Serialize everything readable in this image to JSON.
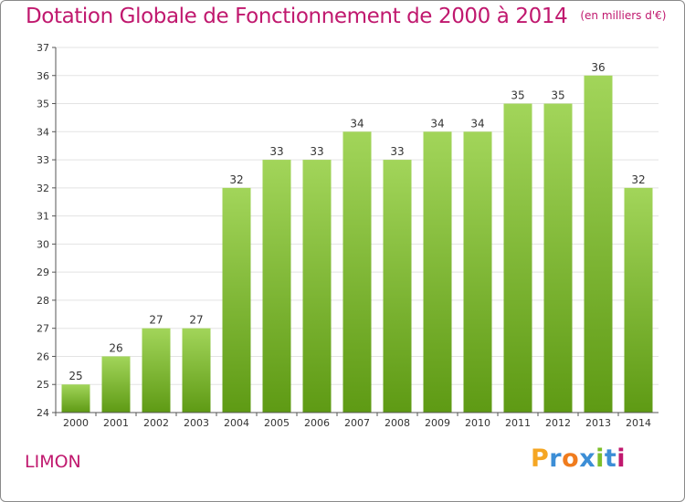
{
  "header": {
    "title": "Dotation Globale de Fonctionnement de 2000 à 2014",
    "subtitle": "(en milliers d'€)"
  },
  "footer": {
    "commune": "LIMON",
    "brand": "Proxiti"
  },
  "colors": {
    "title": "#c0186e",
    "bar_light": "#a2d55a",
    "bar_dark": "#5e9a14",
    "grid": "#e3e3e3",
    "axis": "#555555",
    "brand_letters": [
      "#f5a623",
      "#3c8ed6",
      "#f07c1e",
      "#3c8ed6",
      "#7cbf2a",
      "#3c8ed6",
      "#c0186e"
    ]
  },
  "chart_data": {
    "type": "bar",
    "title": "Dotation Globale de Fonctionnement de 2000 à 2014",
    "subtitle": "(en milliers d'€)",
    "xlabel": "",
    "ylabel": "",
    "categories": [
      "2000",
      "2001",
      "2002",
      "2003",
      "2004",
      "2005",
      "2006",
      "2007",
      "2008",
      "2009",
      "2010",
      "2011",
      "2012",
      "2013",
      "2014"
    ],
    "values": [
      25,
      26,
      27,
      27,
      32,
      33,
      33,
      34,
      33,
      34,
      34,
      35,
      35,
      36,
      32
    ],
    "value_labels": [
      "25",
      "26",
      "27",
      "27",
      "32",
      "33",
      "33",
      "34",
      "33",
      "34",
      "34",
      "35",
      "35",
      "36",
      "32"
    ],
    "ylim": [
      24,
      37
    ],
    "yticks": [
      "24",
      "25",
      "26",
      "27",
      "28",
      "29",
      "30",
      "31",
      "32",
      "33",
      "34",
      "35",
      "36",
      "37"
    ],
    "grid": true,
    "legend": "none"
  }
}
